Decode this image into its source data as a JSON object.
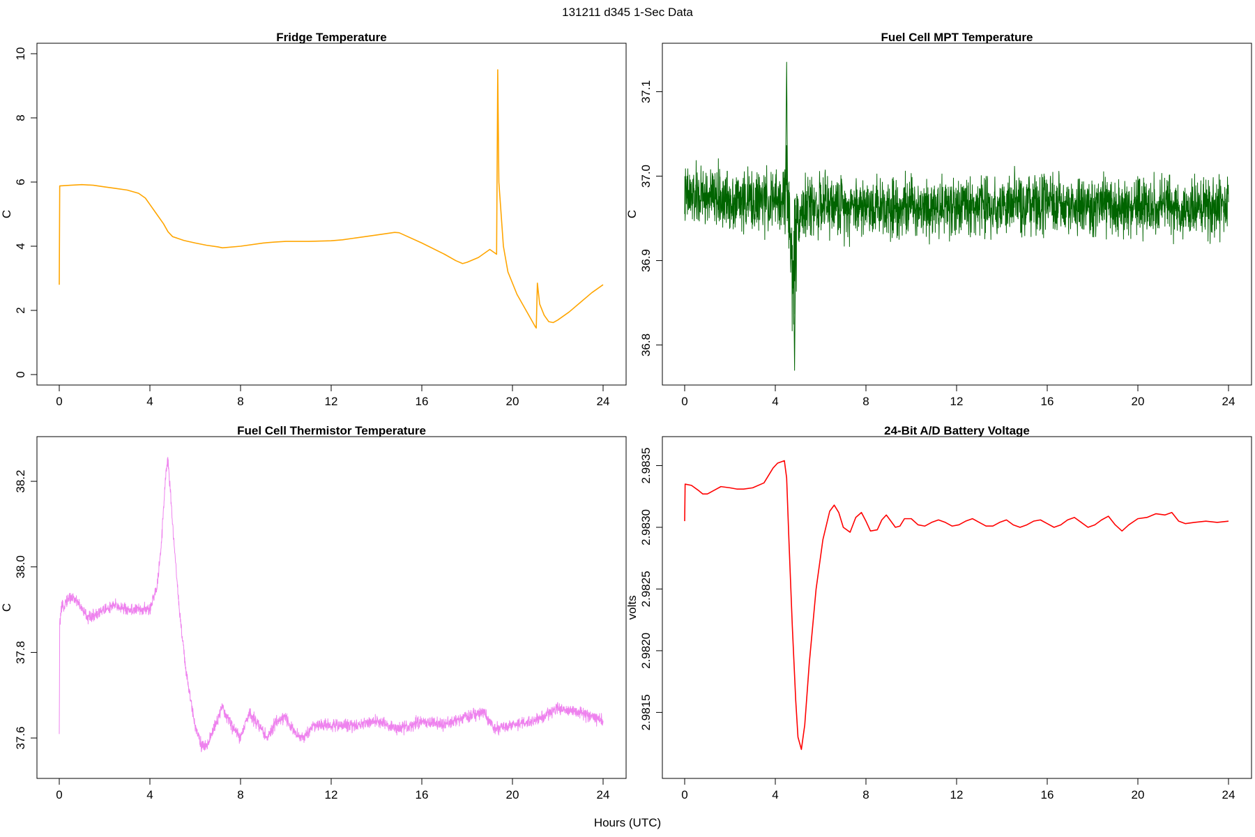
{
  "figure": {
    "main_title": "131211   d345   1-Sec Data",
    "x_label": "Hours (UTC)"
  },
  "chart_data": [
    {
      "id": "fridge",
      "type": "line",
      "title": "Fridge Temperature",
      "xlabel": "",
      "ylabel": "C",
      "color": "#FFA500",
      "xlim": [
        0,
        24
      ],
      "ylim": [
        0,
        10
      ],
      "xticks": [
        0,
        4,
        8,
        12,
        16,
        20,
        24
      ],
      "yticks": [
        0,
        2,
        4,
        6,
        8,
        10
      ],
      "ytick_labels": [
        "0",
        "2",
        "4",
        "6",
        "8",
        "10"
      ],
      "noise": 0.0,
      "x": [
        0,
        0.02,
        0.5,
        1.0,
        1.5,
        2.0,
        2.5,
        3.0,
        3.5,
        3.8,
        4.0,
        4.3,
        4.6,
        4.8,
        5.0,
        5.5,
        6.0,
        6.5,
        7.0,
        7.2,
        8.0,
        9.0,
        9.5,
        10.0,
        11.0,
        12.0,
        12.5,
        13.0,
        14.0,
        14.8,
        15.0,
        16.0,
        17.0,
        17.5,
        17.8,
        18.0,
        18.5,
        19.0,
        19.3,
        19.35,
        19.4,
        19.6,
        19.8,
        20.2,
        20.6,
        21.0,
        21.05,
        21.1,
        21.2,
        21.4,
        21.6,
        21.8,
        22.0,
        22.5,
        23.0,
        23.5,
        24.0
      ],
      "y": [
        2.8,
        5.88,
        5.9,
        5.92,
        5.9,
        5.85,
        5.8,
        5.75,
        5.65,
        5.5,
        5.3,
        5.0,
        4.7,
        4.45,
        4.3,
        4.18,
        4.1,
        4.03,
        3.98,
        3.95,
        4.0,
        4.1,
        4.13,
        4.15,
        4.15,
        4.17,
        4.2,
        4.25,
        4.35,
        4.43,
        4.42,
        4.1,
        3.75,
        3.55,
        3.46,
        3.5,
        3.65,
        3.9,
        3.75,
        9.5,
        6.0,
        4.0,
        3.2,
        2.5,
        2.0,
        1.5,
        1.45,
        2.85,
        2.2,
        1.85,
        1.65,
        1.62,
        1.7,
        1.95,
        2.25,
        2.55,
        2.8
      ]
    },
    {
      "id": "mpt",
      "type": "line",
      "title": "Fuel Cell MPT Temperature",
      "xlabel": "",
      "ylabel": "C",
      "color": "#006400",
      "xlim": [
        0,
        24
      ],
      "ylim": [
        36.765,
        37.145
      ],
      "xticks": [
        0,
        4,
        8,
        12,
        16,
        20,
        24
      ],
      "yticks": [
        36.8,
        36.9,
        37.0,
        37.1
      ],
      "ytick_labels": [
        "36.8",
        "36.9",
        "37.0",
        "37.1"
      ],
      "noise": 0.045,
      "x": [
        0,
        1,
        2,
        3,
        4,
        4.4,
        4.5,
        4.6,
        4.7,
        4.8,
        4.9,
        5.0,
        5.5,
        6,
        8,
        12,
        16,
        20,
        24
      ],
      "y": [
        36.975,
        36.975,
        36.972,
        36.97,
        36.97,
        36.97,
        37.0,
        36.96,
        36.9,
        36.88,
        36.93,
        36.955,
        36.965,
        36.965,
        36.965,
        36.965,
        36.965,
        36.962,
        36.962
      ]
    },
    {
      "id": "thermistor",
      "type": "line",
      "title": "Fuel Cell Thermistor Temperature",
      "xlabel": "",
      "ylabel": "C",
      "color": "#EE82EE",
      "xlim": [
        0,
        24
      ],
      "ylim": [
        37.53,
        38.28
      ],
      "xticks": [
        0,
        4,
        8,
        12,
        16,
        20,
        24
      ],
      "yticks": [
        37.6,
        37.8,
        38.0,
        38.2
      ],
      "ytick_labels": [
        "37.6",
        "37.8",
        "38.0",
        "38.2"
      ],
      "noise": 0.018,
      "x": [
        0,
        0.02,
        0.1,
        0.3,
        0.5,
        0.8,
        1.0,
        1.3,
        1.6,
        2.0,
        2.5,
        3.0,
        3.5,
        4.0,
        4.3,
        4.5,
        4.7,
        4.8,
        5.0,
        5.3,
        5.6,
        6.0,
        6.3,
        6.5,
        6.8,
        7.2,
        7.6,
        8.0,
        8.4,
        8.8,
        9.2,
        9.6,
        10.0,
        10.4,
        10.8,
        11.2,
        12,
        13,
        14,
        15,
        16,
        17,
        18,
        18.7,
        19.2,
        20,
        21,
        22,
        23,
        24
      ],
      "y": [
        37.6,
        37.87,
        37.9,
        37.92,
        37.93,
        37.92,
        37.9,
        37.88,
        37.89,
        37.9,
        37.91,
        37.9,
        37.9,
        37.9,
        37.95,
        38.05,
        38.22,
        38.25,
        38.1,
        37.9,
        37.75,
        37.63,
        37.58,
        37.58,
        37.62,
        37.67,
        37.63,
        37.6,
        37.66,
        37.63,
        37.6,
        37.64,
        37.65,
        37.61,
        37.6,
        37.63,
        37.63,
        37.63,
        37.64,
        37.62,
        37.64,
        37.63,
        37.65,
        37.66,
        37.62,
        37.63,
        37.64,
        37.67,
        37.66,
        37.64
      ]
    },
    {
      "id": "battery",
      "type": "line",
      "title": "24-Bit A/D Battery Voltage",
      "xlabel": "",
      "ylabel": "volts",
      "color": "#FF0000",
      "xlim": [
        0,
        24
      ],
      "ylim": [
        2.98105,
        2.98365
      ],
      "xticks": [
        0,
        4,
        8,
        12,
        16,
        20,
        24
      ],
      "yticks": [
        2.9815,
        2.982,
        2.9825,
        2.983,
        2.9835
      ],
      "ytick_labels": [
        "2.9815",
        "2.9820",
        "2.9825",
        "2.9830",
        "2.9835"
      ],
      "noise": 0.0,
      "x": [
        0,
        0.02,
        0.3,
        0.6,
        0.8,
        1.0,
        1.3,
        1.6,
        2.0,
        2.3,
        2.6,
        3.0,
        3.5,
        3.9,
        4.1,
        4.4,
        4.5,
        4.6,
        4.75,
        4.9,
        5.0,
        5.15,
        5.3,
        5.5,
        5.8,
        6.1,
        6.4,
        6.6,
        6.8,
        7.0,
        7.3,
        7.55,
        7.8,
        8.0,
        8.2,
        8.5,
        8.7,
        8.9,
        9.1,
        9.3,
        9.5,
        9.7,
        10.0,
        10.3,
        10.6,
        10.9,
        11.2,
        11.5,
        11.8,
        12.1,
        12.4,
        12.7,
        13.0,
        13.3,
        13.6,
        13.9,
        14.2,
        14.5,
        14.8,
        15.1,
        15.4,
        15.7,
        16.0,
        16.3,
        16.6,
        16.9,
        17.2,
        17.5,
        17.8,
        18.1,
        18.4,
        18.7,
        19.0,
        19.3,
        19.6,
        20.0,
        20.4,
        20.8,
        21.2,
        21.5,
        21.8,
        22.1,
        22.5,
        23.0,
        23.5,
        24.0
      ],
      "y": [
        2.98305,
        2.98335,
        2.98334,
        2.9833,
        2.98327,
        2.98327,
        2.9833,
        2.98333,
        2.98332,
        2.98331,
        2.98331,
        2.98332,
        2.98336,
        2.98348,
        2.98352,
        2.98354,
        2.9834,
        2.9829,
        2.9822,
        2.9816,
        2.9813,
        2.9812,
        2.9814,
        2.9819,
        2.9825,
        2.9829,
        2.98313,
        2.98318,
        2.98312,
        2.983,
        2.98296,
        2.98308,
        2.98312,
        2.98305,
        2.98297,
        2.98298,
        2.98306,
        2.9831,
        2.98305,
        2.983,
        2.98301,
        2.98307,
        2.98307,
        2.98302,
        2.98301,
        2.98304,
        2.98306,
        2.98304,
        2.98301,
        2.98302,
        2.98305,
        2.98307,
        2.98304,
        2.98301,
        2.98301,
        2.98304,
        2.98306,
        2.98302,
        2.983,
        2.98302,
        2.98305,
        2.98306,
        2.98303,
        2.983,
        2.98302,
        2.98306,
        2.98308,
        2.98304,
        2.983,
        2.98302,
        2.98306,
        2.98309,
        2.98302,
        2.98297,
        2.98302,
        2.98307,
        2.98308,
        2.98311,
        2.9831,
        2.98312,
        2.98305,
        2.98303,
        2.98304,
        2.98305,
        2.98304,
        2.98305
      ]
    }
  ]
}
